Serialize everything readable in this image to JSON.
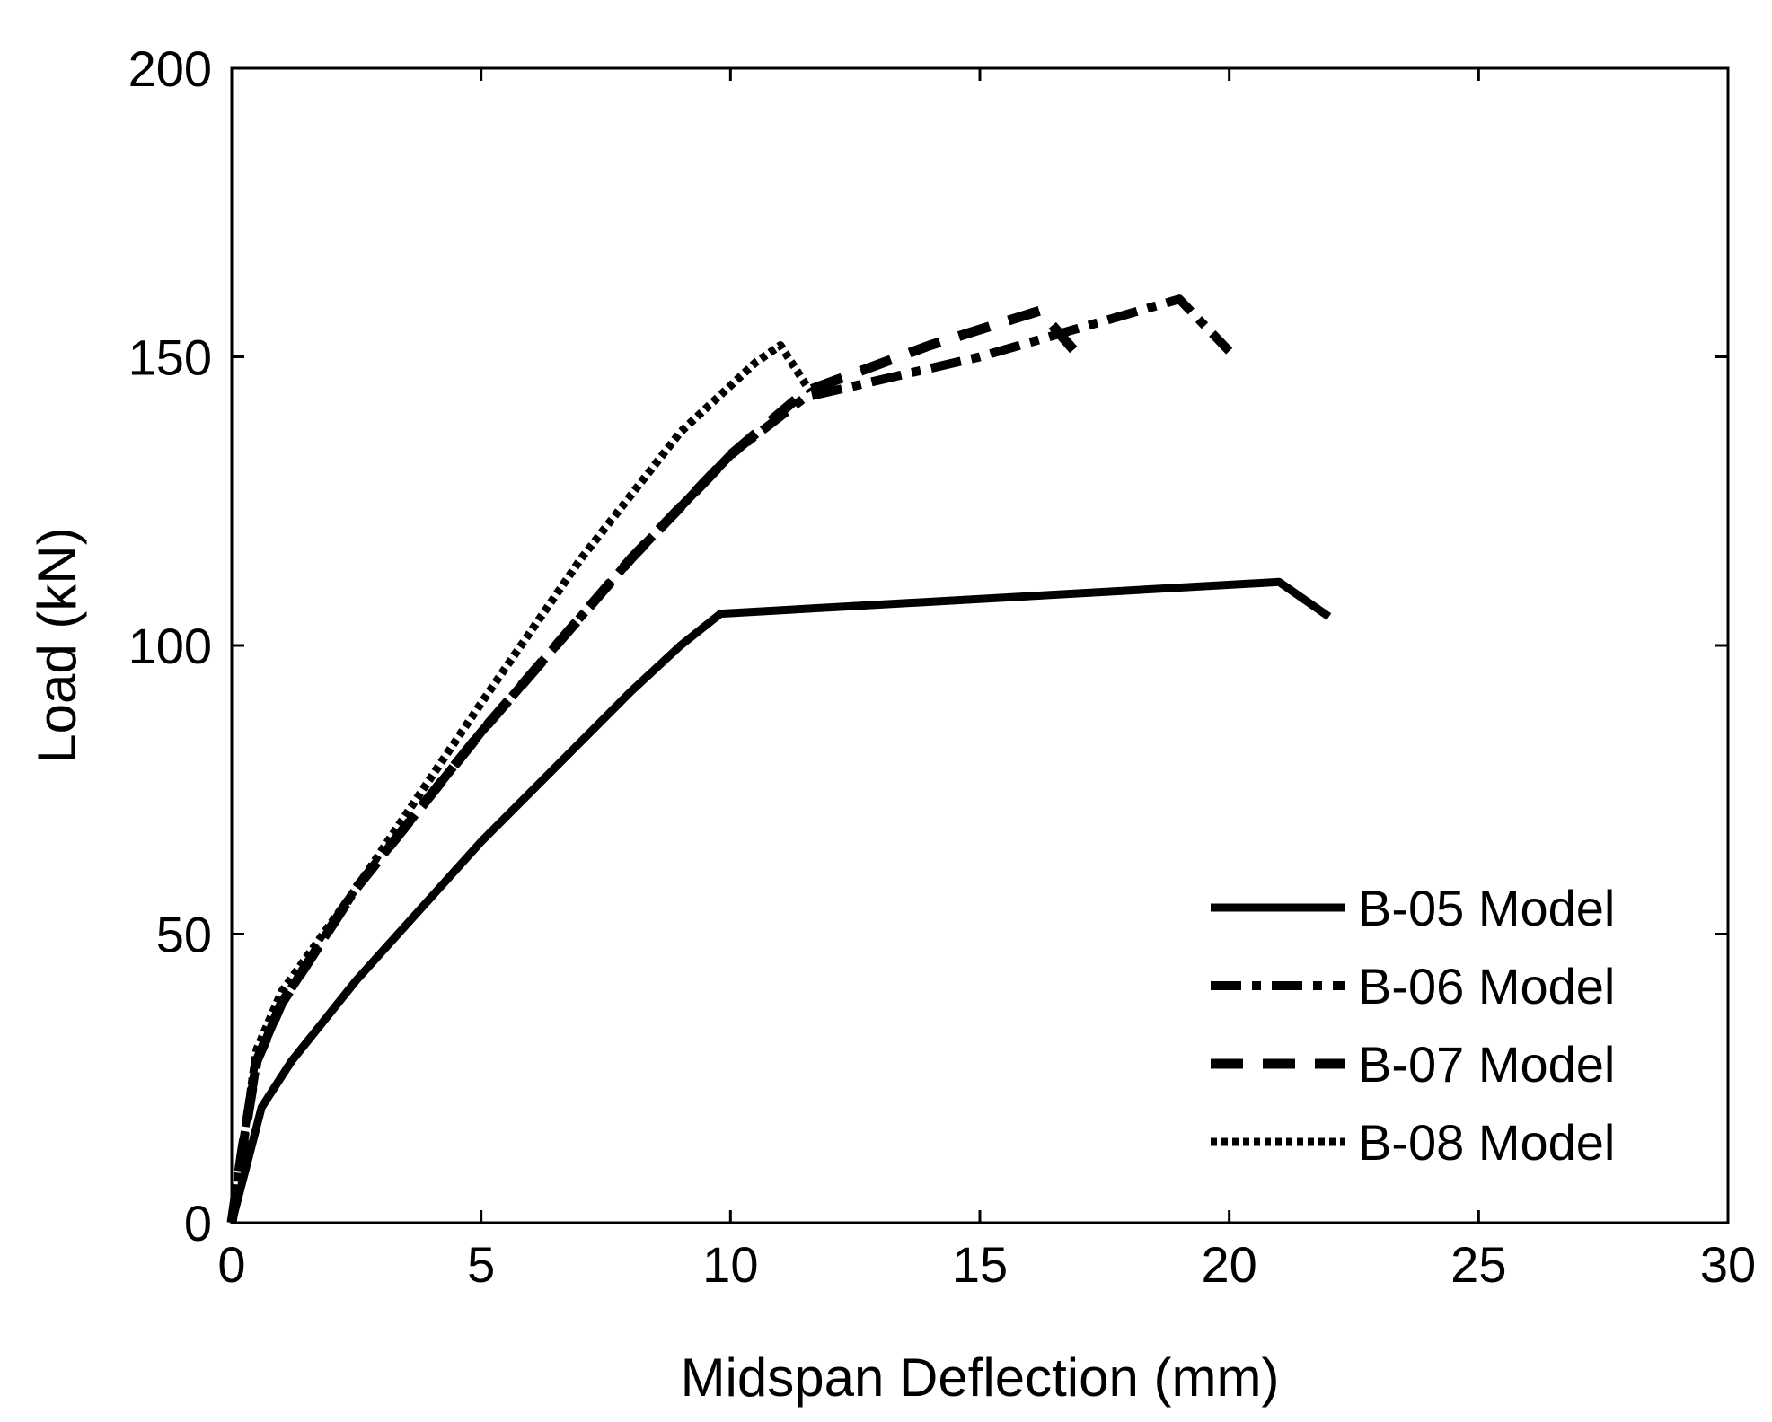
{
  "chart_data": {
    "type": "line",
    "title": "",
    "xlabel": "Midspan Deflection (mm)",
    "ylabel": "Load (kN)",
    "xlim": [
      0,
      30
    ],
    "ylim": [
      0,
      200
    ],
    "xticks": [
      0,
      5,
      10,
      15,
      20,
      25,
      30
    ],
    "yticks": [
      0,
      50,
      100,
      150,
      200
    ],
    "xtick_labels": [
      "0",
      "5",
      "10",
      "15",
      "20",
      "25",
      "30"
    ],
    "ytick_labels": [
      "0",
      "50",
      "100",
      "150",
      "200"
    ],
    "grid": false,
    "legend_position": "bottom-right",
    "series": [
      {
        "name": "B-05 Model",
        "style": "solid",
        "x": [
          0,
          0.3,
          0.6,
          1.2,
          2.5,
          5.0,
          8.0,
          9.0,
          9.8,
          21.0,
          22.0
        ],
        "y": [
          0,
          10,
          20,
          28,
          42,
          66,
          92,
          100,
          105.5,
          111,
          105
        ]
      },
      {
        "name": "B-06 Model",
        "style": "dashdot",
        "x": [
          0,
          0.2,
          0.5,
          1.0,
          2.5,
          5.0,
          8.0,
          10.0,
          11.5,
          15.0,
          19.0,
          20.0
        ],
        "y": [
          0,
          12,
          28,
          38,
          58,
          85,
          115,
          133,
          143,
          150,
          160,
          151
        ]
      },
      {
        "name": "B-07 Model",
        "style": "dashed",
        "x": [
          0,
          0.2,
          0.5,
          1.0,
          2.5,
          5.0,
          8.0,
          10.0,
          11.5,
          14.0,
          16.2,
          16.5,
          17.0
        ],
        "y": [
          0,
          12,
          28,
          38,
          58,
          85,
          115,
          133,
          144,
          152,
          158,
          155,
          150
        ]
      },
      {
        "name": "B-08 Model",
        "style": "dotted",
        "x": [
          0,
          0.2,
          0.5,
          1.0,
          2.5,
          5.0,
          7.0,
          9.0,
          10.5,
          11.0,
          11.6
        ],
        "y": [
          0,
          12,
          30,
          40,
          58,
          90,
          115,
          137,
          149,
          152,
          144
        ]
      }
    ]
  }
}
